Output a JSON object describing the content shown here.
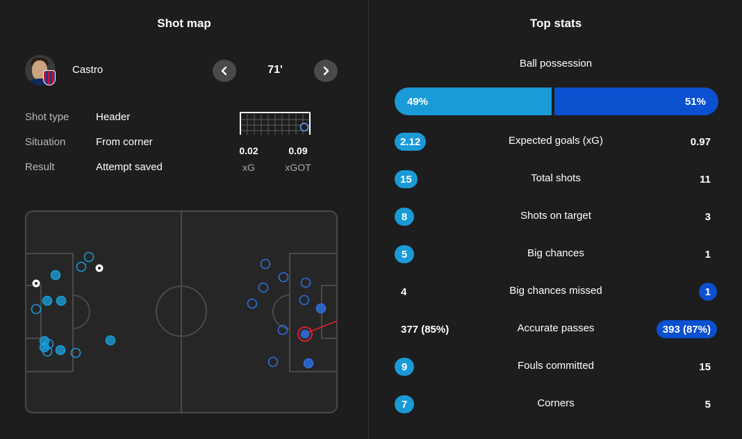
{
  "shot_map": {
    "title": "Shot map",
    "player": {
      "name": "Castro"
    },
    "minute": "71'",
    "details": [
      {
        "label": "Shot type",
        "value": "Header"
      },
      {
        "label": "Situation",
        "value": "From corner"
      },
      {
        "label": "Result",
        "value": "Attempt saved"
      }
    ],
    "xg": {
      "value": "0.02",
      "label": "xG"
    },
    "xgot": {
      "value": "0.09",
      "label": "xGOT"
    },
    "colors": {
      "home": "#1a9ad6",
      "away": "#2f6fe0",
      "selected": "#e0202e"
    },
    "icons": {
      "prev": "chevron-left-icon",
      "next": "chevron-right-icon",
      "goal": "football-icon"
    }
  },
  "top_stats": {
    "title": "Top stats",
    "possession": {
      "label": "Ball possession",
      "home": "49%",
      "away": "51%",
      "home_pct": 49,
      "away_pct": 51
    },
    "rows": [
      {
        "label": "Expected goals (xG)",
        "home": "2.12",
        "away": "0.97",
        "highlight": "home"
      },
      {
        "label": "Total shots",
        "home": "15",
        "away": "11",
        "highlight": "home"
      },
      {
        "label": "Shots on target",
        "home": "8",
        "away": "3",
        "highlight": "home"
      },
      {
        "label": "Big chances",
        "home": "5",
        "away": "1",
        "highlight": "home"
      },
      {
        "label": "Big chances missed",
        "home": "4",
        "away": "1",
        "highlight": "away"
      },
      {
        "label": "Accurate passes",
        "home": "377 (85%)",
        "away": "393 (87%)",
        "highlight": "away"
      },
      {
        "label": "Fouls committed",
        "home": "9",
        "away": "15",
        "highlight": "home"
      },
      {
        "label": "Corners",
        "home": "7",
        "away": "5",
        "highlight": "home"
      }
    ],
    "colors": {
      "home": "#1a9ad6",
      "away": "#0a50cf"
    }
  }
}
